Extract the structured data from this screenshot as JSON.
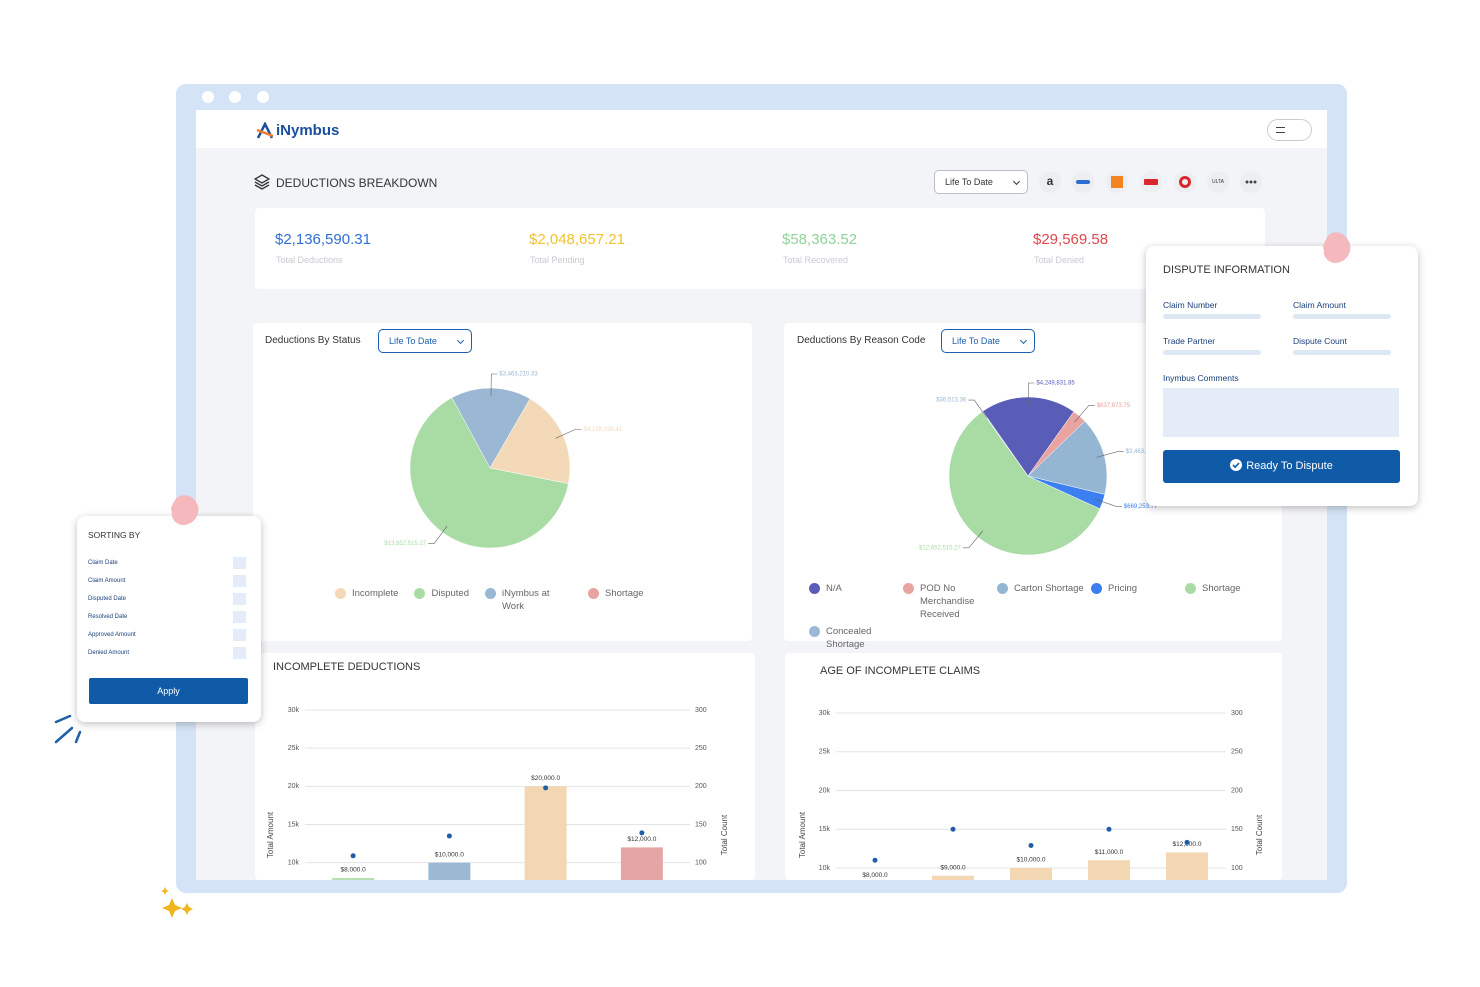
{
  "header": {
    "logo": "iNymbus"
  },
  "breakdown": {
    "title": "DEDUCTIONS BREAKDOWN",
    "period": "Life To Date",
    "retailers": [
      "a",
      "ULTA"
    ]
  },
  "kpis": [
    {
      "value": "$2,136,590.31",
      "label": "Total Deductions"
    },
    {
      "value": "$2,048,657.21",
      "label": "Total Pending"
    },
    {
      "value": "$58,363.52",
      "label": "Total Recovered"
    },
    {
      "value": "$29,569.58",
      "label": "Total Denied"
    }
  ],
  "chart_data": [
    {
      "type": "pie",
      "title": "Deductions By Status",
      "period": "Life To Date",
      "categories": [
        "Incomplete",
        "Disputed",
        "iNymbus at Work",
        "Shortage"
      ],
      "values": [
        4228336.41,
        13652515.27,
        3463210.33,
        0
      ],
      "value_labels": [
        "$4,228,336.41",
        "$13,652,515.27",
        "$3,463,210.33",
        null
      ],
      "colors": [
        "#f4d9b8",
        "#a9dca5",
        "#9ab8d4",
        "#e9a3a0"
      ]
    },
    {
      "type": "pie",
      "title": "Deductions By Reason Code",
      "period": "Life To Date",
      "categories": [
        "N/A",
        "POD No Merchandise Received",
        "Carton Shortage",
        "Pricing",
        "Shortage",
        "Concealed Shortage"
      ],
      "values": [
        4249831.85,
        637873.75,
        3463210.33,
        669253.77,
        12652515.27,
        36513.36
      ],
      "value_labels": [
        "$4,249,831.85",
        "$637,873.75",
        "$3,463,210.33",
        "$669,253.77",
        "$12,652,515.27",
        "$36,513.36"
      ],
      "colors": [
        "#5a5db8",
        "#e9a3a0",
        "#94b6d3",
        "#3b7ff0",
        "#a9dca5",
        "#9bb9d6"
      ]
    },
    {
      "type": "bar",
      "title": "INCOMPLETE DEDUCTIONS",
      "y_label": "Total Amount",
      "y2_label": "Total Count",
      "ylim": [
        0,
        30000
      ],
      "yticks": [
        {
          "value": 10000,
          "label": "10k"
        },
        {
          "value": 15000,
          "label": "15k"
        },
        {
          "value": 20000,
          "label": "20k"
        },
        {
          "value": 25000,
          "label": "25k"
        },
        {
          "value": 30000,
          "label": "30k"
        }
      ],
      "y2lim": [
        0,
        300
      ],
      "y2ticks": [
        100,
        150,
        200,
        250,
        300
      ],
      "grid": true,
      "series": [
        {
          "values": [
            8000,
            10000,
            20000,
            12000
          ],
          "value_labels": [
            "$8,000.0",
            "$10,000.0",
            "$20,000.0",
            "$12,000.0"
          ],
          "colors": [
            "#b9e0b4",
            "#9bb9d3",
            "#f3d6b2",
            "#e6a5a5"
          ]
        },
        {
          "axis": "y2",
          "color": "#1f5fa8",
          "values": [
            109,
            135,
            198,
            139
          ]
        }
      ]
    },
    {
      "type": "bar",
      "title": "AGE OF INCOMPLETE CLAIMS",
      "y_label": "Total Amount",
      "y2_label": "Total Count",
      "ylim": [
        0,
        30000
      ],
      "yticks": [
        {
          "value": 10000,
          "label": "10k"
        },
        {
          "value": 15000,
          "label": "15k"
        },
        {
          "value": 20000,
          "label": "20k"
        },
        {
          "value": 25000,
          "label": "25k"
        },
        {
          "value": 30000,
          "label": "30k"
        }
      ],
      "y2lim": [
        0,
        300
      ],
      "y2ticks": [
        100,
        150,
        200,
        250,
        300
      ],
      "grid": true,
      "series": [
        {
          "values": [
            8000,
            9000,
            10000,
            11000,
            12000
          ],
          "value_labels": [
            "$8,000.0",
            "$9,000.0",
            "$10,000.0",
            "$11,000.0",
            "$12,000.0"
          ],
          "color": "#f3d6b2"
        },
        {
          "axis": "y2",
          "color": "#1f5fa8",
          "values": [
            110,
            150,
            129,
            150,
            133
          ]
        }
      ]
    }
  ],
  "sorting": {
    "title": "SORTING BY",
    "options": [
      "Claim Date",
      "Claim Amount",
      "Disputed Date",
      "Resolved Date",
      "Approved Amount",
      "Denied Amount"
    ],
    "button": "Apply"
  },
  "dispute": {
    "title": "DISPUTE INFORMATION",
    "fields": [
      "Claim Number",
      "Claim Amount",
      "Trade Partner",
      "Dispute Count"
    ],
    "comments_label": "Inymbus Comments",
    "button": "Ready To Dispute"
  }
}
